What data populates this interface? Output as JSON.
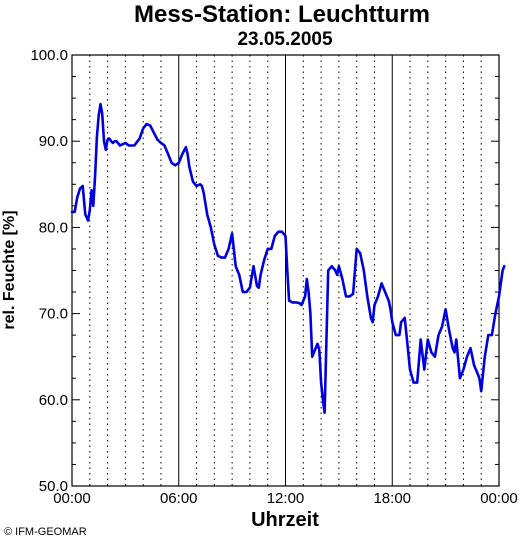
{
  "chart_data": {
    "type": "line",
    "title": "Mess-Station: Leuchtturm",
    "subtitle": "23.05.2005",
    "xlabel": "Uhrzeit",
    "ylabel": "rel. Feuchte [%]",
    "x_ticks": [
      "00:00",
      "06:00",
      "12:00",
      "18:00",
      "00:00"
    ],
    "x_tick_hours": [
      0,
      6,
      12,
      18,
      24
    ],
    "y_ticks": [
      "50.0",
      "60.0",
      "70.0",
      "80.0",
      "90.0",
      "100.0"
    ],
    "ylim": [
      50,
      100
    ],
    "xlim_hours": [
      0,
      24
    ],
    "grid": true,
    "series": [
      {
        "color": "#0000dd",
        "x_hours": [
          0.0,
          0.15,
          0.3,
          0.45,
          0.6,
          0.75,
          0.9,
          1.0,
          1.1,
          1.2,
          1.3,
          1.4,
          1.5,
          1.6,
          1.7,
          1.8,
          1.9,
          2.0,
          2.1,
          2.2,
          2.3,
          2.4,
          2.5,
          2.7,
          3.0,
          3.2,
          3.5,
          3.8,
          4.0,
          4.2,
          4.4,
          4.6,
          4.8,
          5.0,
          5.2,
          5.4,
          5.6,
          5.8,
          6.0,
          6.2,
          6.4,
          6.5,
          6.6,
          6.8,
          7.0,
          7.2,
          7.3,
          7.4,
          7.6,
          7.8,
          8.0,
          8.2,
          8.4,
          8.6,
          8.8,
          9.0,
          9.2,
          9.4,
          9.6,
          9.8,
          10.0,
          10.2,
          10.4,
          10.5,
          10.6,
          10.8,
          11.0,
          11.2,
          11.4,
          11.6,
          11.8,
          12.0,
          12.1,
          12.2,
          12.4,
          12.6,
          12.8,
          12.9,
          13.0,
          13.1,
          13.2,
          13.3,
          13.4,
          13.5,
          13.6,
          13.7,
          13.8,
          13.9,
          14.0,
          14.1,
          14.2,
          14.4,
          14.6,
          14.8,
          14.9,
          15.0,
          15.2,
          15.4,
          15.6,
          15.8,
          16.0,
          16.2,
          16.4,
          16.6,
          16.8,
          16.9,
          17.0,
          17.2,
          17.4,
          17.6,
          17.8,
          17.9,
          18.0,
          18.2,
          18.4,
          18.5,
          18.7,
          18.8,
          19.0,
          19.2,
          19.4,
          19.6,
          19.8,
          20.0,
          20.2,
          20.4,
          20.6,
          20.8,
          21.0,
          21.2,
          21.4,
          21.5,
          21.6,
          21.8,
          22.0,
          22.2,
          22.4,
          22.6,
          22.8,
          22.9,
          23.0,
          23.2,
          23.4,
          23.6,
          23.8,
          24.0,
          24.2,
          24.3
        ],
        "y": [
          81.8,
          81.8,
          83.5,
          84.5,
          84.8,
          81.5,
          80.8,
          82.0,
          84.3,
          82.5,
          86.0,
          90.5,
          93.0,
          94.3,
          93.2,
          90.0,
          89.0,
          90.2,
          90.3,
          90.0,
          89.8,
          90.0,
          90.0,
          89.5,
          89.8,
          89.5,
          89.5,
          90.3,
          91.5,
          92.0,
          91.8,
          91.0,
          90.2,
          89.8,
          89.5,
          88.5,
          87.5,
          87.2,
          87.5,
          88.5,
          89.3,
          88.5,
          87.0,
          85.3,
          84.8,
          85.0,
          84.8,
          84.0,
          81.5,
          80.0,
          78.0,
          76.7,
          76.5,
          76.5,
          77.5,
          79.3,
          75.5,
          74.5,
          72.5,
          72.5,
          73.0,
          75.5,
          73.2,
          73.0,
          74.5,
          76.2,
          77.5,
          77.5,
          79.0,
          79.5,
          79.5,
          79.0,
          75.0,
          71.5,
          71.3,
          71.3,
          71.2,
          71.0,
          71.5,
          72.0,
          74.0,
          72.5,
          70.0,
          65.0,
          65.5,
          66.0,
          66.5,
          65.8,
          62.0,
          60.0,
          58.5,
          75.0,
          75.5,
          75.0,
          74.5,
          75.5,
          74.0,
          72.0,
          72.0,
          72.3,
          77.5,
          77.0,
          75.0,
          72.0,
          69.5,
          69.0,
          71.0,
          72.0,
          73.5,
          72.5,
          71.5,
          70.5,
          69.0,
          67.5,
          67.5,
          69.0,
          69.5,
          67.5,
          63.5,
          62.0,
          62.0,
          67.0,
          63.5,
          67.0,
          65.5,
          65.0,
          67.5,
          68.5,
          70.5,
          68.0,
          66.0,
          65.5,
          67.0,
          62.5,
          63.5,
          65.0,
          66.0,
          64.0,
          63.0,
          62.5,
          61.0,
          65.0,
          67.5,
          67.5,
          70.0,
          72.0,
          75.0,
          75.5
        ]
      }
    ]
  },
  "copyright": "© IFM-GEOMAR",
  "colors": {
    "line": "#0000dd",
    "grid": "#000000",
    "background": "#ffffff"
  }
}
